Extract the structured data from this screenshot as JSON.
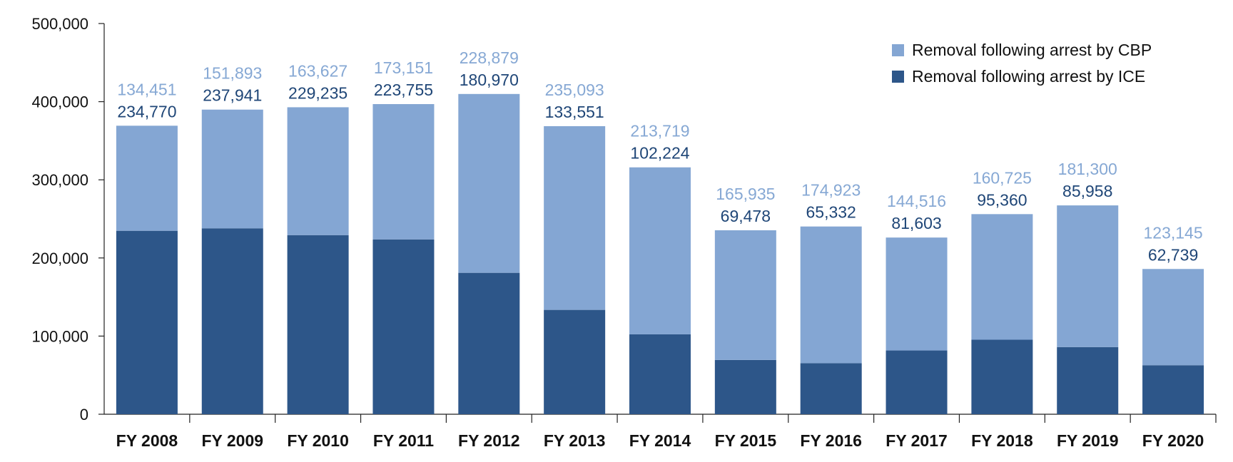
{
  "chart_data": {
    "type": "bar",
    "stacked": true,
    "categories": [
      "FY 2008",
      "FY 2009",
      "FY 2010",
      "FY 2011",
      "FY 2012",
      "FY 2013",
      "FY 2014",
      "FY 2015",
      "FY 2016",
      "FY 2017",
      "FY 2018",
      "FY 2019",
      "FY 2020"
    ],
    "series": [
      {
        "name": "Removal following arrest by ICE",
        "color": "#2d5689",
        "label_color": "#1f4677",
        "values": [
          234770,
          237941,
          229235,
          223755,
          180970,
          133551,
          102224,
          69478,
          65332,
          81603,
          95360,
          85958,
          62739
        ],
        "labels": [
          "234,770",
          "237,941",
          "229,235",
          "223,755",
          "180,970",
          "133,551",
          "102,224",
          "69,478",
          "65,332",
          "81,603",
          "95,360",
          "85,958",
          "62,739"
        ]
      },
      {
        "name": "Removal following arrest by CBP",
        "color": "#84a6d3",
        "label_color": "#86a8d4",
        "values": [
          134451,
          151893,
          163627,
          173151,
          228879,
          235093,
          213719,
          165935,
          174923,
          144516,
          160725,
          181300,
          123145
        ],
        "labels": [
          "134,451",
          "151,893",
          "163,627",
          "173,151",
          "228,879",
          "235,093",
          "213,719",
          "165,935",
          "174,923",
          "144,516",
          "160,725",
          "181,300",
          "123,145"
        ]
      }
    ],
    "legend_order": [
      1,
      0
    ],
    "legend_position": "top-right",
    "y_ticks": [
      0,
      100000,
      200000,
      300000,
      400000,
      500000
    ],
    "y_tick_labels": [
      "0",
      "100,000",
      "200,000",
      "300,000",
      "400,000",
      "500,000"
    ],
    "ylim": [
      0,
      500000
    ],
    "grid": false
  }
}
